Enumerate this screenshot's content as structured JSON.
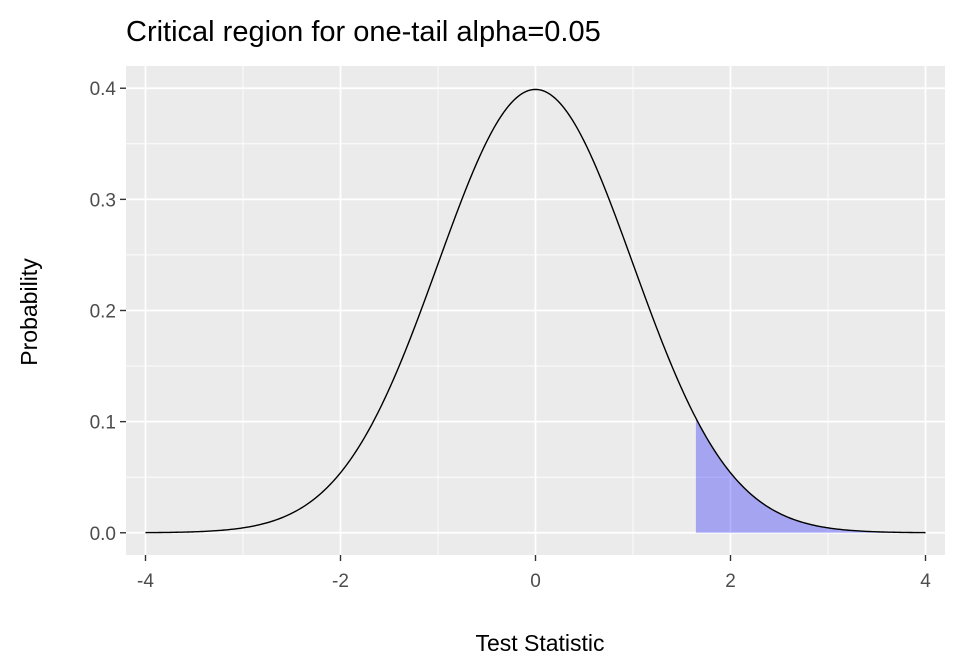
{
  "chart_data": {
    "type": "area",
    "title": "Critical region for one-tail alpha=0.05",
    "xlabel": "Test Statistic",
    "ylabel": "Probability",
    "xlim": [
      -4.2,
      4.2
    ],
    "ylim": [
      -0.02,
      0.42
    ],
    "x_ticks": [
      -4,
      -2,
      0,
      2,
      4
    ],
    "x_tick_labels": [
      "-4",
      "-2",
      "0",
      "2",
      "4"
    ],
    "y_ticks": [
      0.0,
      0.1,
      0.2,
      0.3,
      0.4
    ],
    "y_tick_labels": [
      "0.0",
      "0.1",
      "0.2",
      "0.3",
      "0.4"
    ],
    "grid": true,
    "series": [
      {
        "kind": "line",
        "distribution": "standard normal density",
        "x_range": [
          -4,
          4
        ],
        "color": "#000000"
      },
      {
        "kind": "shaded_area",
        "x_range": [
          1.645,
          4
        ],
        "color": "#0000ff",
        "opacity": 0.3
      }
    ],
    "background": "#ebebeb",
    "grid_color": "#ffffff"
  }
}
